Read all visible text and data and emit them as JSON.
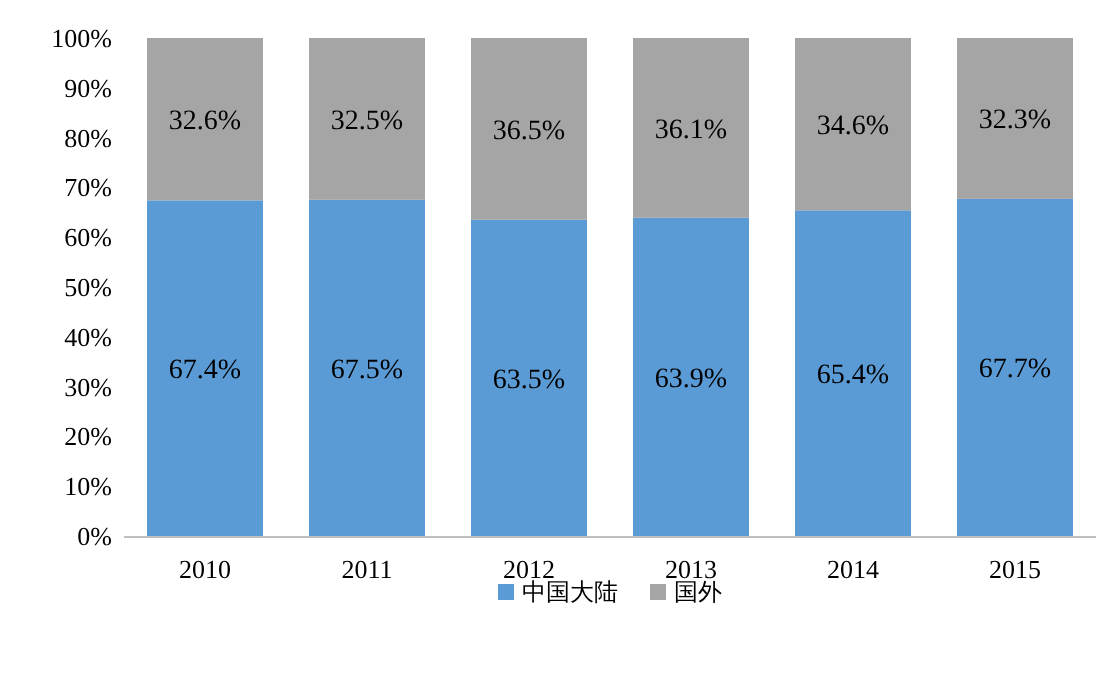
{
  "chart_data": {
    "type": "bar",
    "stacked": true,
    "legend": "bottom",
    "categories": [
      "2010",
      "2011",
      "2012",
      "2013",
      "2014",
      "2015"
    ],
    "ylim": [
      0,
      100
    ],
    "yticks": [
      {
        "value": 0,
        "label": "0%"
      },
      {
        "value": 10,
        "label": "10%"
      },
      {
        "value": 20,
        "label": "20%"
      },
      {
        "value": 30,
        "label": "30%"
      },
      {
        "value": 40,
        "label": "40%"
      },
      {
        "value": 50,
        "label": "50%"
      },
      {
        "value": 60,
        "label": "60%"
      },
      {
        "value": 70,
        "label": "70%"
      },
      {
        "value": 80,
        "label": "80%"
      },
      {
        "value": 90,
        "label": "90%"
      },
      {
        "value": 100,
        "label": "100%"
      }
    ],
    "series": [
      {
        "name": "中国大陆",
        "color": "#5b9bd5",
        "values": [
          67.4,
          67.5,
          63.5,
          63.9,
          65.4,
          67.7
        ],
        "value_labels": [
          "67.4%",
          "67.5%",
          "63.5%",
          "63.9%",
          "65.4%",
          "67.7%"
        ]
      },
      {
        "name": "国外",
        "color": "#a5a5a5",
        "values": [
          32.6,
          32.5,
          36.5,
          36.1,
          34.6,
          32.3
        ],
        "value_labels": [
          "32.6%",
          "32.5%",
          "36.5%",
          "36.1%",
          "34.6%",
          "32.3%"
        ]
      }
    ]
  }
}
